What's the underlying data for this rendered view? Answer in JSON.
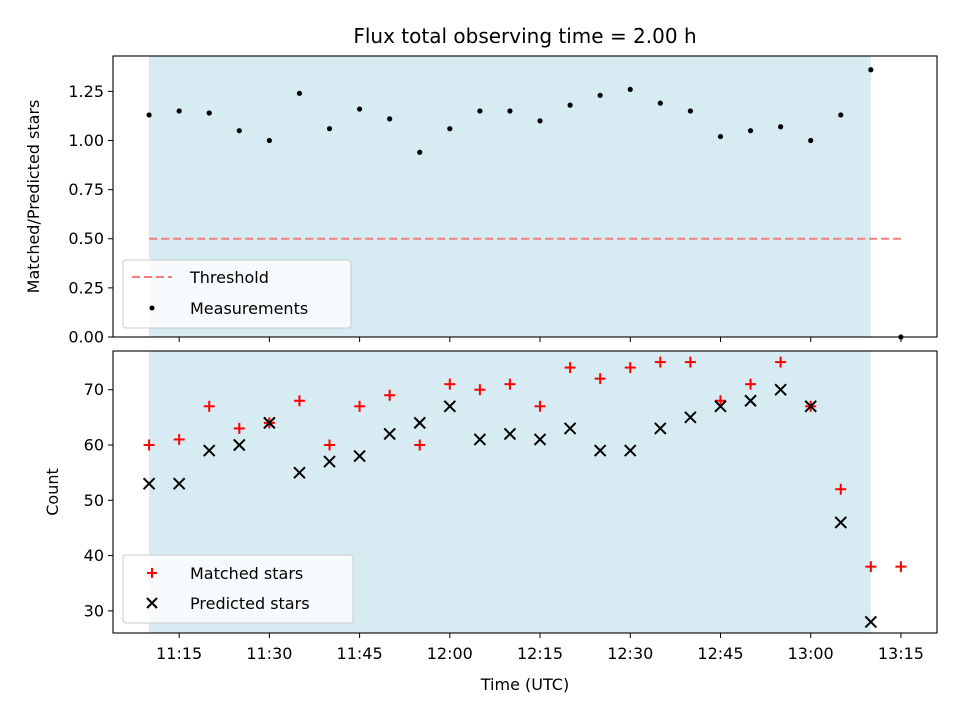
{
  "chart_data": [
    {
      "type": "scatter",
      "title": "Flux total observing time = 2.00 h",
      "xlabel": "",
      "ylabel": "Matched/Predicted stars",
      "ylim": [
        0,
        1.43
      ],
      "yticks": [
        "0.00",
        "0.25",
        "0.50",
        "0.75",
        "1.00",
        "1.25"
      ],
      "ytick_values": [
        0,
        0.25,
        0.5,
        0.75,
        1.0,
        1.25
      ],
      "shaded_region": {
        "from": "11:10",
        "to": "13:10",
        "color": "#add8e6"
      },
      "threshold": {
        "name": "Threshold",
        "value": 0.5,
        "x_from": "11:10",
        "x_to": "13:15",
        "color": "#f08080",
        "style": "dashed"
      },
      "series": [
        {
          "name": "Measurements",
          "marker": "dot",
          "color": "#000000",
          "x": [
            "11:10",
            "11:15",
            "11:20",
            "11:25",
            "11:30",
            "11:35",
            "11:40",
            "11:45",
            "11:50",
            "11:55",
            "12:00",
            "12:05",
            "12:10",
            "12:15",
            "12:20",
            "12:25",
            "12:30",
            "12:35",
            "12:40",
            "12:45",
            "12:50",
            "12:55",
            "13:00",
            "13:05",
            "13:10",
            "13:15"
          ],
          "values": [
            1.13,
            1.15,
            1.14,
            1.05,
            1.0,
            1.24,
            1.06,
            1.16,
            1.11,
            0.94,
            1.06,
            1.15,
            1.15,
            1.1,
            1.18,
            1.23,
            1.26,
            1.19,
            1.15,
            1.02,
            1.05,
            1.07,
            1.0,
            1.13,
            1.36,
            0.0
          ]
        }
      ],
      "legend": {
        "position": "lower-left",
        "entries": [
          "Threshold",
          "Measurements"
        ]
      },
      "grid": false
    },
    {
      "type": "scatter",
      "title": "",
      "xlabel": "Time (UTC)",
      "ylabel": "Count",
      "ylim": [
        26,
        77
      ],
      "yticks": [
        "30",
        "40",
        "50",
        "60",
        "70"
      ],
      "ytick_values": [
        30,
        40,
        50,
        60,
        70
      ],
      "xticks": [
        "11:15",
        "11:30",
        "11:45",
        "12:00",
        "12:15",
        "12:30",
        "12:45",
        "13:00",
        "13:15"
      ],
      "shaded_region": {
        "from": "11:10",
        "to": "13:10",
        "color": "#add8e6"
      },
      "series": [
        {
          "name": "Matched stars",
          "marker": "plus",
          "color": "#ff0000",
          "x": [
            "11:10",
            "11:15",
            "11:20",
            "11:25",
            "11:30",
            "11:35",
            "11:40",
            "11:45",
            "11:50",
            "11:55",
            "12:00",
            "12:05",
            "12:10",
            "12:15",
            "12:20",
            "12:25",
            "12:30",
            "12:35",
            "12:40",
            "12:45",
            "12:50",
            "12:55",
            "13:00",
            "13:05",
            "13:10",
            "13:15"
          ],
          "values": [
            60,
            61,
            67,
            63,
            64,
            68,
            60,
            67,
            69,
            60,
            71,
            70,
            71,
            67,
            74,
            72,
            74,
            75,
            75,
            68,
            71,
            75,
            67,
            52,
            38,
            38
          ]
        },
        {
          "name": "Predicted stars",
          "marker": "x",
          "color": "#000000",
          "x": [
            "11:10",
            "11:15",
            "11:20",
            "11:25",
            "11:30",
            "11:35",
            "11:40",
            "11:45",
            "11:50",
            "11:55",
            "12:00",
            "12:05",
            "12:10",
            "12:15",
            "12:20",
            "12:25",
            "12:30",
            "12:35",
            "12:40",
            "12:45",
            "12:50",
            "12:55",
            "13:00",
            "13:05",
            "13:10"
          ],
          "values": [
            53,
            53,
            59,
            60,
            64,
            55,
            57,
            58,
            62,
            64,
            67,
            61,
            62,
            61,
            63,
            59,
            59,
            63,
            65,
            67,
            68,
            70,
            67,
            46,
            28
          ]
        }
      ],
      "legend": {
        "position": "lower-left",
        "entries": [
          "Matched stars",
          "Predicted stars"
        ]
      },
      "grid": false
    }
  ],
  "x_domain": [
    "11:04",
    "13:21"
  ]
}
